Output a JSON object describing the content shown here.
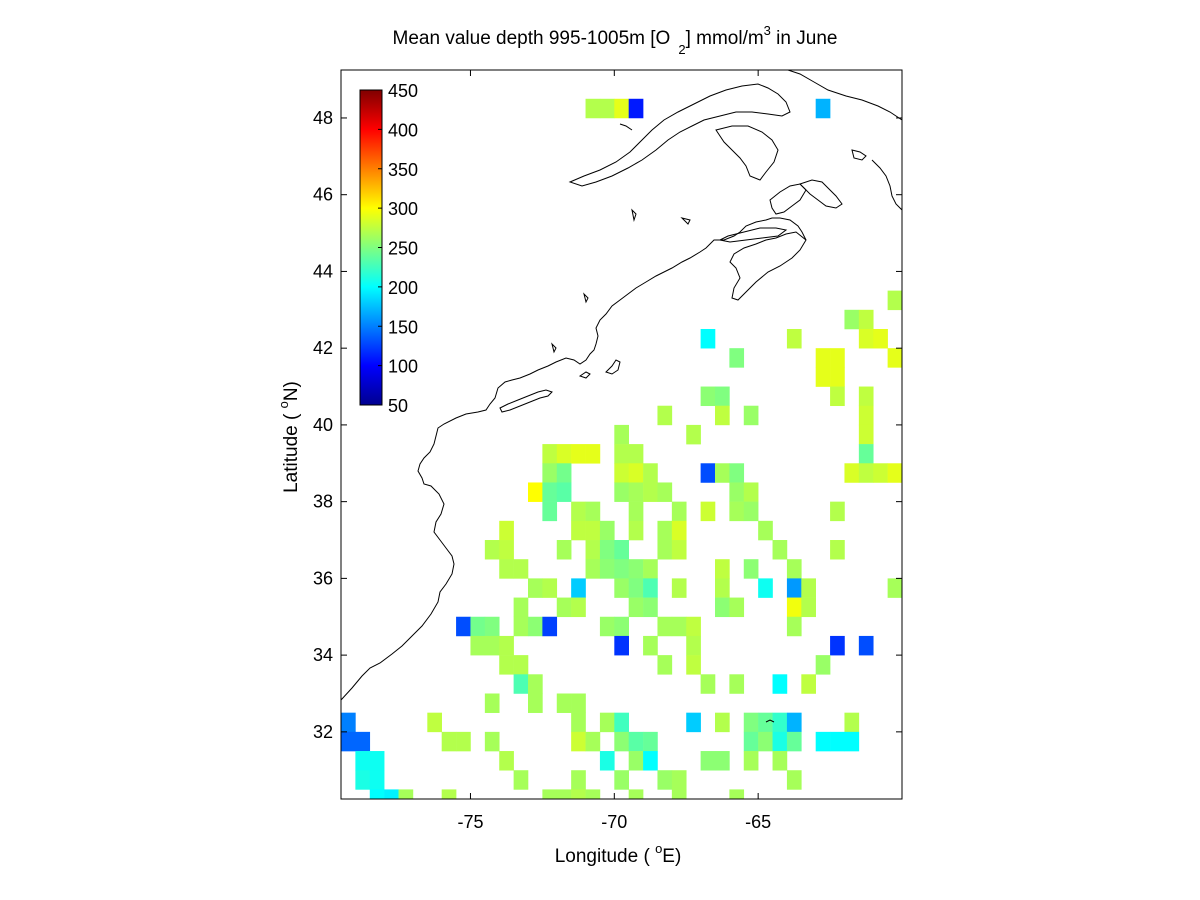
{
  "chart_data": {
    "type": "heatmap",
    "title": {
      "prefix": "Mean value depth 995-1005m [O",
      "sub": "2",
      "middle": "] mmol/m",
      "sup": "3",
      "suffix": " in June"
    },
    "xlabel": {
      "prefix": "Longitude ( ",
      "sup": "o",
      "suffix": "E)"
    },
    "ylabel": {
      "prefix": "Latitude ( ",
      "sup": "o",
      "suffix": "N)"
    },
    "xlim": [
      -79.5,
      -60
    ],
    "ylim": [
      30.25,
      49.25
    ],
    "xticks": [
      -75,
      -70,
      -65
    ],
    "yticks": [
      32,
      34,
      36,
      38,
      40,
      42,
      44,
      46,
      48
    ],
    "cell_size_deg": 0.5,
    "colormap": "jet",
    "colorbar": {
      "min": 50,
      "max": 450,
      "ticks": [
        50,
        100,
        150,
        200,
        250,
        300,
        350,
        400,
        450
      ],
      "placement": "upper-left, inside axes"
    },
    "cells": [
      [
        -70.75,
        48.25,
        270
      ],
      [
        -70.25,
        48.25,
        270
      ],
      [
        -69.75,
        48.25,
        290
      ],
      [
        -69.25,
        48.25,
        110
      ],
      [
        -62.75,
        48.25,
        170
      ],
      [
        -61.75,
        42.75,
        260
      ],
      [
        -61.25,
        42.75,
        275
      ],
      [
        -60.25,
        43.25,
        270
      ],
      [
        -61.25,
        42.25,
        285
      ],
      [
        -60.75,
        42.25,
        290
      ],
      [
        -66.75,
        42.25,
        200
      ],
      [
        -63.75,
        42.25,
        275
      ],
      [
        -62.75,
        41.75,
        290
      ],
      [
        -62.25,
        41.75,
        290
      ],
      [
        -60.25,
        41.75,
        290
      ],
      [
        -65.75,
        41.75,
        250
      ],
      [
        -62.75,
        41.25,
        290
      ],
      [
        -62.25,
        41.25,
        290
      ],
      [
        -66.75,
        40.75,
        255
      ],
      [
        -66.25,
        40.75,
        250
      ],
      [
        -62.25,
        40.75,
        275
      ],
      [
        -61.25,
        40.75,
        275
      ],
      [
        -68.25,
        40.25,
        270
      ],
      [
        -66.25,
        40.25,
        275
      ],
      [
        -65.25,
        40.25,
        260
      ],
      [
        -61.25,
        40.25,
        280
      ],
      [
        -69.75,
        39.75,
        265
      ],
      [
        -67.25,
        39.75,
        270
      ],
      [
        -61.25,
        39.75,
        280
      ],
      [
        -72.25,
        39.25,
        275
      ],
      [
        -71.75,
        39.25,
        285
      ],
      [
        -71.25,
        39.25,
        290
      ],
      [
        -70.75,
        39.25,
        290
      ],
      [
        -69.75,
        39.25,
        270
      ],
      [
        -69.25,
        39.25,
        270
      ],
      [
        -61.25,
        39.25,
        240
      ],
      [
        -72.25,
        38.75,
        260
      ],
      [
        -71.75,
        38.75,
        245
      ],
      [
        -69.75,
        38.75,
        280
      ],
      [
        -69.25,
        38.75,
        285
      ],
      [
        -68.75,
        38.75,
        270
      ],
      [
        -66.75,
        38.75,
        130
      ],
      [
        -66.25,
        38.75,
        265
      ],
      [
        -65.75,
        38.75,
        250
      ],
      [
        -61.75,
        38.75,
        285
      ],
      [
        -61.25,
        38.75,
        275
      ],
      [
        -60.75,
        38.75,
        280
      ],
      [
        -60.25,
        38.75,
        290
      ],
      [
        -72.75,
        38.25,
        300
      ],
      [
        -72.25,
        38.25,
        240
      ],
      [
        -71.75,
        38.25,
        235
      ],
      [
        -69.75,
        38.25,
        260
      ],
      [
        -69.25,
        38.25,
        265
      ],
      [
        -68.75,
        38.25,
        270
      ],
      [
        -68.25,
        38.25,
        265
      ],
      [
        -65.75,
        38.25,
        260
      ],
      [
        -65.25,
        38.25,
        270
      ],
      [
        -72.25,
        37.75,
        240
      ],
      [
        -71.25,
        37.75,
        270
      ],
      [
        -70.75,
        37.75,
        265
      ],
      [
        -69.25,
        37.75,
        265
      ],
      [
        -67.75,
        37.75,
        265
      ],
      [
        -66.75,
        37.75,
        280
      ],
      [
        -65.75,
        37.75,
        265
      ],
      [
        -65.25,
        37.75,
        260
      ],
      [
        -62.25,
        37.75,
        270
      ],
      [
        -73.75,
        37.25,
        280
      ],
      [
        -71.25,
        37.25,
        275
      ],
      [
        -70.75,
        37.25,
        275
      ],
      [
        -70.25,
        37.25,
        260
      ],
      [
        -69.25,
        37.25,
        270
      ],
      [
        -68.25,
        37.25,
        265
      ],
      [
        -67.75,
        37.25,
        285
      ],
      [
        -64.75,
        37.25,
        265
      ],
      [
        -74.25,
        36.75,
        270
      ],
      [
        -73.75,
        36.75,
        275
      ],
      [
        -71.75,
        36.75,
        265
      ],
      [
        -70.75,
        36.75,
        270
      ],
      [
        -70.25,
        36.75,
        250
      ],
      [
        -69.75,
        36.75,
        240
      ],
      [
        -68.25,
        36.75,
        265
      ],
      [
        -67.75,
        36.75,
        275
      ],
      [
        -64.25,
        36.75,
        265
      ],
      [
        -62.25,
        36.75,
        270
      ],
      [
        -73.75,
        36.25,
        270
      ],
      [
        -73.25,
        36.25,
        270
      ],
      [
        -70.75,
        36.25,
        265
      ],
      [
        -70.25,
        36.25,
        255
      ],
      [
        -69.75,
        36.25,
        250
      ],
      [
        -69.25,
        36.25,
        255
      ],
      [
        -68.75,
        36.25,
        265
      ],
      [
        -66.25,
        36.25,
        275
      ],
      [
        -65.25,
        36.25,
        255
      ],
      [
        -63.75,
        36.25,
        265
      ],
      [
        -72.75,
        35.75,
        265
      ],
      [
        -72.25,
        35.75,
        270
      ],
      [
        -71.25,
        35.75,
        180
      ],
      [
        -69.75,
        35.75,
        260
      ],
      [
        -69.25,
        35.75,
        250
      ],
      [
        -68.75,
        35.75,
        230
      ],
      [
        -67.75,
        35.75,
        270
      ],
      [
        -66.25,
        35.75,
        270
      ],
      [
        -64.75,
        35.75,
        205
      ],
      [
        -63.75,
        35.75,
        160
      ],
      [
        -63.25,
        35.75,
        270
      ],
      [
        -60.25,
        35.75,
        265
      ],
      [
        -73.25,
        35.25,
        265
      ],
      [
        -71.75,
        35.25,
        265
      ],
      [
        -71.25,
        35.25,
        270
      ],
      [
        -69.25,
        35.25,
        260
      ],
      [
        -68.75,
        35.25,
        255
      ],
      [
        -66.25,
        35.25,
        255
      ],
      [
        -65.75,
        35.25,
        265
      ],
      [
        -63.75,
        35.25,
        295
      ],
      [
        -63.25,
        35.25,
        270
      ],
      [
        -75.25,
        34.75,
        130
      ],
      [
        -74.75,
        34.75,
        245
      ],
      [
        -74.25,
        34.75,
        250
      ],
      [
        -73.25,
        34.75,
        265
      ],
      [
        -72.75,
        34.75,
        255
      ],
      [
        -72.25,
        34.75,
        125
      ],
      [
        -70.25,
        34.75,
        260
      ],
      [
        -69.75,
        34.75,
        255
      ],
      [
        -68.25,
        34.75,
        265
      ],
      [
        -67.75,
        34.75,
        265
      ],
      [
        -67.25,
        34.75,
        275
      ],
      [
        -63.75,
        34.75,
        265
      ],
      [
        -74.75,
        34.25,
        265
      ],
      [
        -74.25,
        34.25,
        265
      ],
      [
        -73.75,
        34.25,
        270
      ],
      [
        -69.75,
        34.25,
        120
      ],
      [
        -68.75,
        34.25,
        265
      ],
      [
        -67.25,
        34.25,
        270
      ],
      [
        -62.25,
        34.25,
        120
      ],
      [
        -61.25,
        34.25,
        130
      ],
      [
        -73.75,
        33.75,
        270
      ],
      [
        -73.25,
        33.75,
        270
      ],
      [
        -68.25,
        33.75,
        265
      ],
      [
        -67.25,
        33.75,
        275
      ],
      [
        -62.75,
        33.75,
        260
      ],
      [
        -73.25,
        33.25,
        230
      ],
      [
        -72.75,
        33.25,
        265
      ],
      [
        -66.75,
        33.25,
        265
      ],
      [
        -65.75,
        33.25,
        265
      ],
      [
        -64.25,
        33.25,
        200
      ],
      [
        -63.25,
        33.25,
        275
      ],
      [
        -74.25,
        32.75,
        265
      ],
      [
        -72.75,
        32.75,
        265
      ],
      [
        -71.75,
        32.75,
        265
      ],
      [
        -71.25,
        32.75,
        265
      ],
      [
        -79.25,
        32.25,
        150
      ],
      [
        -76.25,
        32.25,
        275
      ],
      [
        -71.25,
        32.25,
        265
      ],
      [
        -70.25,
        32.25,
        265
      ],
      [
        -69.75,
        32.25,
        225
      ],
      [
        -67.25,
        32.25,
        180
      ],
      [
        -66.25,
        32.25,
        270
      ],
      [
        -65.25,
        32.25,
        250
      ],
      [
        -64.75,
        32.25,
        240
      ],
      [
        -64.25,
        32.25,
        220
      ],
      [
        -63.75,
        32.25,
        170
      ],
      [
        -61.75,
        32.25,
        270
      ],
      [
        -79.25,
        31.75,
        140
      ],
      [
        -78.75,
        31.75,
        140
      ],
      [
        -75.75,
        31.75,
        270
      ],
      [
        -75.25,
        31.75,
        270
      ],
      [
        -74.25,
        31.75,
        265
      ],
      [
        -71.25,
        31.75,
        280
      ],
      [
        -70.75,
        31.75,
        265
      ],
      [
        -69.75,
        31.75,
        255
      ],
      [
        -69.25,
        31.75,
        235
      ],
      [
        -68.75,
        31.75,
        240
      ],
      [
        -65.25,
        31.75,
        240
      ],
      [
        -64.75,
        31.75,
        255
      ],
      [
        -64.25,
        31.75,
        210
      ],
      [
        -63.75,
        31.75,
        240
      ],
      [
        -62.75,
        31.75,
        200
      ],
      [
        -62.25,
        31.75,
        200
      ],
      [
        -61.75,
        31.75,
        200
      ],
      [
        -78.75,
        31.25,
        205
      ],
      [
        -78.25,
        31.25,
        205
      ],
      [
        -73.75,
        31.25,
        270
      ],
      [
        -70.25,
        31.25,
        210
      ],
      [
        -69.25,
        31.25,
        260
      ],
      [
        -68.75,
        31.25,
        200
      ],
      [
        -66.75,
        31.25,
        255
      ],
      [
        -66.25,
        31.25,
        255
      ],
      [
        -65.25,
        31.25,
        265
      ],
      [
        -64.25,
        31.25,
        265
      ],
      [
        -78.75,
        30.75,
        210
      ],
      [
        -78.25,
        30.75,
        205
      ],
      [
        -73.25,
        30.75,
        265
      ],
      [
        -71.25,
        30.75,
        265
      ],
      [
        -69.75,
        30.75,
        260
      ],
      [
        -68.25,
        30.75,
        260
      ],
      [
        -67.75,
        30.75,
        265
      ],
      [
        -63.75,
        30.75,
        265
      ],
      [
        -78.25,
        30.25,
        200
      ],
      [
        -77.75,
        30.25,
        195
      ],
      [
        -77.25,
        30.25,
        265
      ],
      [
        -75.75,
        30.25,
        270
      ],
      [
        -72.25,
        30.25,
        265
      ],
      [
        -71.75,
        30.25,
        265
      ],
      [
        -71.25,
        30.25,
        270
      ],
      [
        -70.75,
        30.25,
        265
      ],
      [
        -69.25,
        30.25,
        265
      ],
      [
        -67.75,
        30.25,
        265
      ],
      [
        -65.75,
        30.25,
        265
      ]
    ]
  }
}
